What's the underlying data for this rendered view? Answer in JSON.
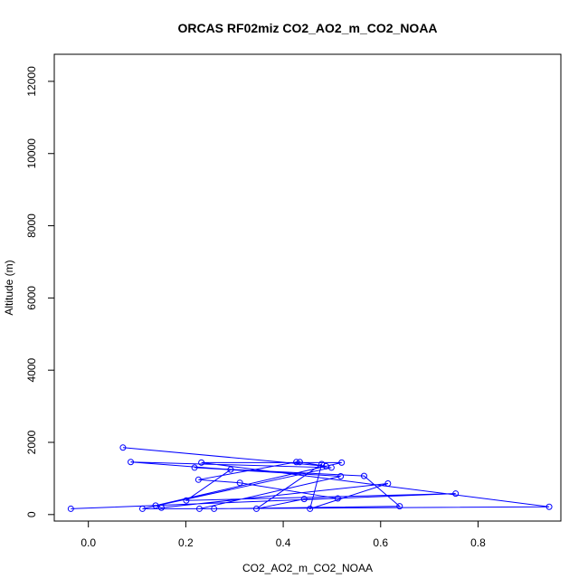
{
  "chart_data": {
    "type": "line",
    "title": "ORCAS RF02miz CO2_AO2_m_CO2_NOAA",
    "xlabel": "CO2_AO2_m_CO2_NOAA",
    "ylabel": "Altitude (m)",
    "xlim": [
      -0.07,
      0.97
    ],
    "ylim": [
      -180,
      12750
    ],
    "x_ticks": [
      0.0,
      0.2,
      0.4,
      0.6,
      0.8
    ],
    "x_tick_labels": [
      "0.0",
      "0.2",
      "0.4",
      "0.6",
      "0.8"
    ],
    "y_ticks": [
      0,
      2000,
      4000,
      6000,
      8000,
      10000,
      12000
    ],
    "y_tick_labels": [
      "0",
      "2000",
      "4000",
      "6000",
      "8000",
      "10000",
      "12000"
    ],
    "grid": false,
    "color": "#0000ff",
    "series": [
      {
        "marker": "open-circle",
        "points": [
          {
            "x": -0.036,
            "y": 160
          },
          {
            "x": 0.754,
            "y": 580
          },
          {
            "x": 0.201,
            "y": 390
          },
          {
            "x": 0.292,
            "y": 1245
          },
          {
            "x": 0.087,
            "y": 1455
          },
          {
            "x": 0.499,
            "y": 1300
          },
          {
            "x": 0.111,
            "y": 160
          },
          {
            "x": 0.258,
            "y": 160
          },
          {
            "x": 0.639,
            "y": 230
          },
          {
            "x": 0.566,
            "y": 1070
          },
          {
            "x": 0.218,
            "y": 1300
          },
          {
            "x": 0.518,
            "y": 1060
          },
          {
            "x": 0.228,
            "y": 160
          },
          {
            "x": 0.946,
            "y": 215
          },
          {
            "x": 0.232,
            "y": 1440
          },
          {
            "x": 0.52,
            "y": 1440
          },
          {
            "x": 0.138,
            "y": 250
          },
          {
            "x": 0.15,
            "y": 190
          },
          {
            "x": 0.615,
            "y": 860
          },
          {
            "x": 0.455,
            "y": 160
          },
          {
            "x": 0.479,
            "y": 1400
          },
          {
            "x": 0.345,
            "y": 160
          },
          {
            "x": 0.443,
            "y": 430
          },
          {
            "x": 0.512,
            "y": 445
          },
          {
            "x": 0.311,
            "y": 880
          },
          {
            "x": 0.226,
            "y": 965
          },
          {
            "x": 0.427,
            "y": 1455
          },
          {
            "x": 0.434,
            "y": 1455
          },
          {
            "x": 0.488,
            "y": 1340
          },
          {
            "x": 0.071,
            "y": 1855
          }
        ]
      }
    ]
  }
}
